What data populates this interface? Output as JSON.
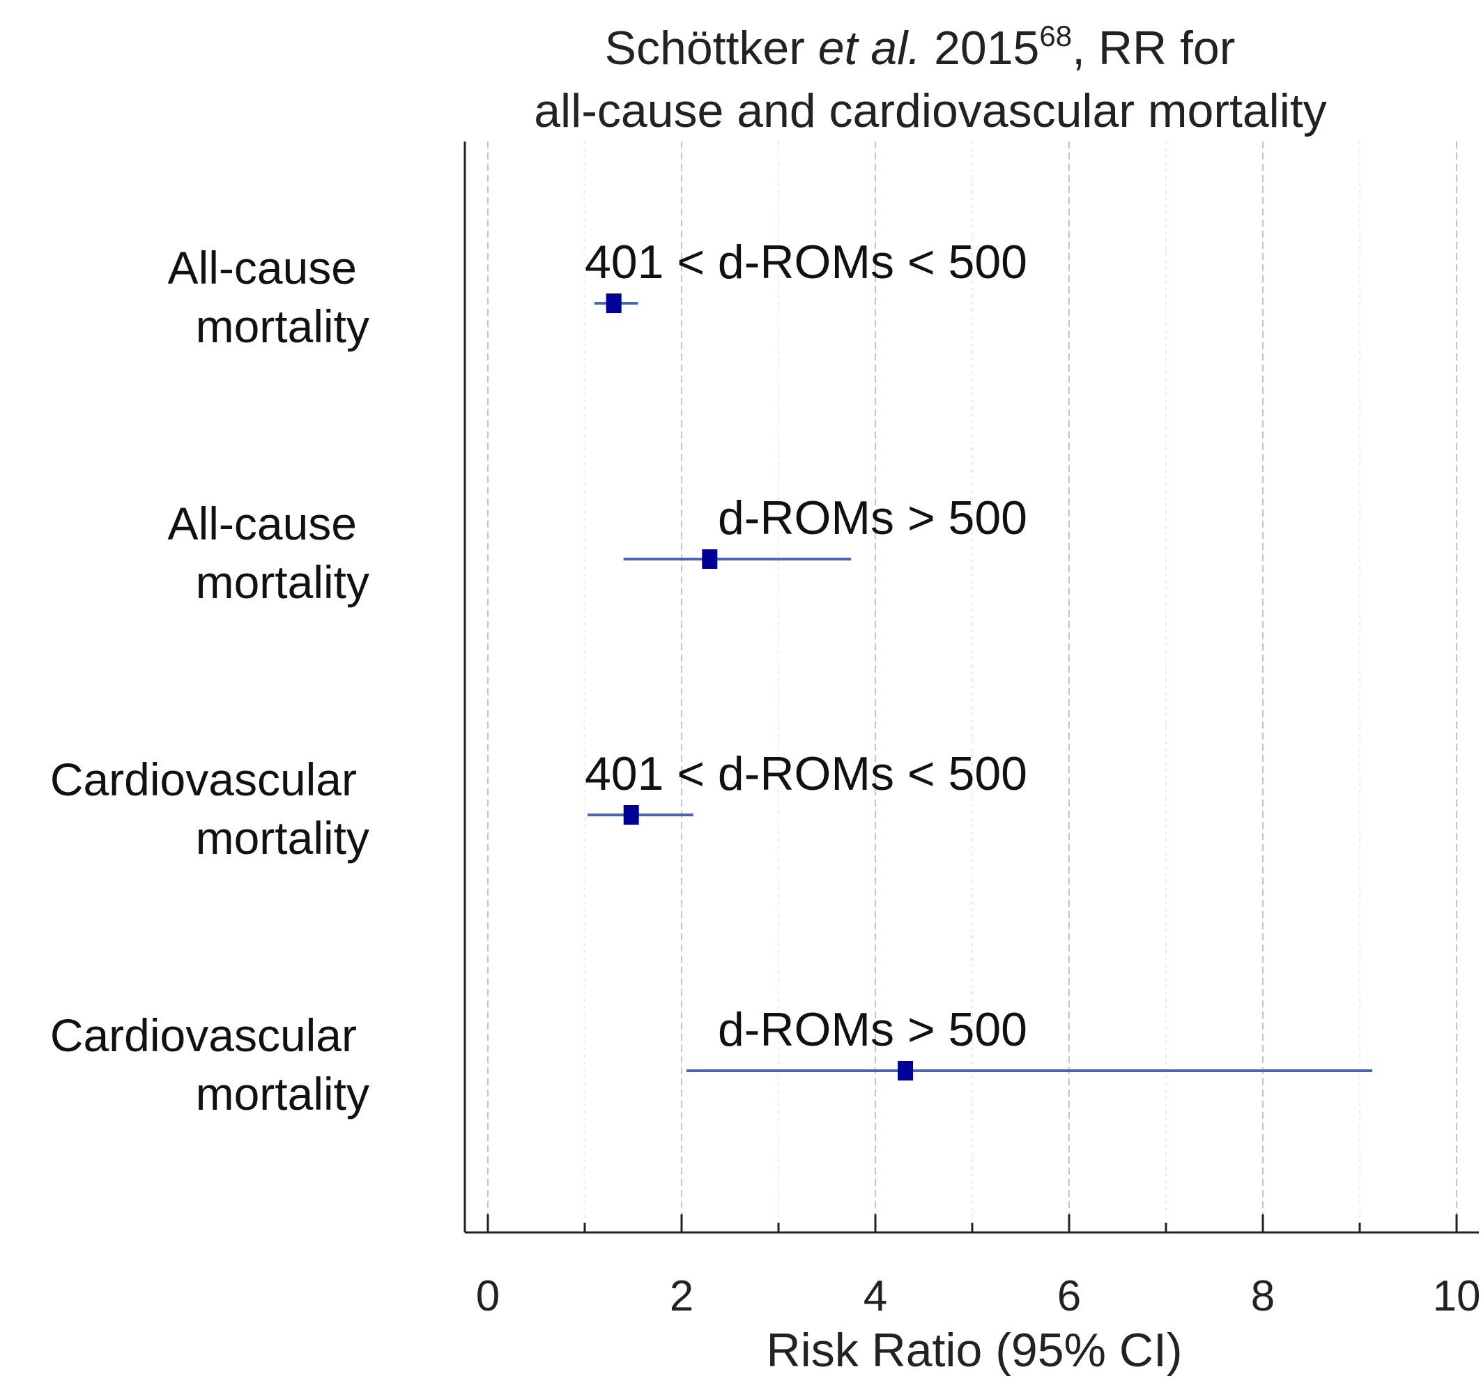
{
  "chart_data": {
    "type": "forest",
    "title_line1": {
      "prefix": "Schöttker ",
      "italic": "et al.",
      "mid": " 2015",
      "superscript": "68",
      "suffix": ", RR for"
    },
    "title_line2": "all-cause and cardiovascular mortality",
    "xlabel": "Risk Ratio (95% CI)",
    "xlim": [
      0,
      10
    ],
    "xticks": [
      "0",
      "2",
      "4",
      "6",
      "8",
      "10"
    ],
    "grid": "vertical dashed",
    "marker_color": "#000099",
    "ci_color": "#4a66b0",
    "rows": [
      {
        "label_line1": "All-cause",
        "label_line2": "mortality",
        "annotation": "401 < d-ROMs < 500",
        "rr": 1.3,
        "ci_low": 1.1,
        "ci_high": 1.55
      },
      {
        "label_line1": "All-cause",
        "label_line2": "mortality",
        "annotation": "d-ROMs > 500",
        "rr": 2.29,
        "ci_low": 1.4,
        "ci_high": 3.75
      },
      {
        "label_line1": "Cardiovascular",
        "label_line2": "mortality",
        "annotation": "401 < d-ROMs < 500",
        "rr": 1.48,
        "ci_low": 1.03,
        "ci_high": 2.12
      },
      {
        "label_line1": "Cardiovascular",
        "label_line2": "mortality",
        "annotation": "d-ROMs > 500",
        "rr": 4.31,
        "ci_low": 2.05,
        "ci_high": 9.13
      }
    ]
  }
}
